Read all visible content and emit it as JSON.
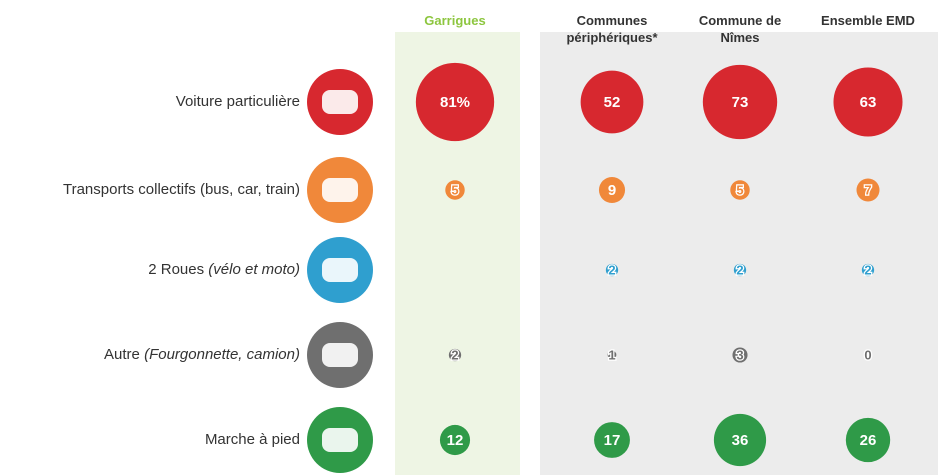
{
  "chart_data": {
    "type": "bubble-matrix",
    "categories": [
      "Voiture particulière",
      "Transports collectifs (bus, car, train)",
      "2 Roues",
      "Autre",
      "Marche à pied"
    ],
    "category_notes": [
      null,
      null,
      "(vélo et moto)",
      "(Fourgonnette, camion)",
      null
    ],
    "row_colors": [
      "#d7282f",
      "#f0883a",
      "#2f9fcf",
      "#6f6f6f",
      "#2f9a48"
    ],
    "series": [
      {
        "name": "Garrigues",
        "color": "#8dc63f",
        "values": [
          81,
          5,
          null,
          2,
          12
        ],
        "value_labels": [
          "81%",
          "5",
          null,
          "2",
          "12"
        ]
      },
      {
        "name": "Communes périphériques*",
        "color": "#333333",
        "values": [
          52,
          9,
          2,
          1,
          17
        ]
      },
      {
        "name": "Commune de Nîmes",
        "color": "#333333",
        "values": [
          73,
          5,
          2,
          3,
          36
        ]
      },
      {
        "name": "Ensemble EMD",
        "color": "#333333",
        "values": [
          63,
          7,
          2,
          0,
          26
        ]
      }
    ]
  }
}
